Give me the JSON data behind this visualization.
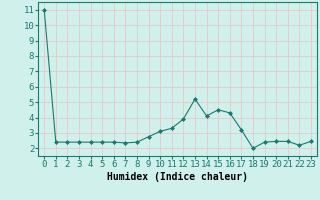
{
  "xlabel": "Humidex (Indice chaleur)",
  "ylabel": "",
  "x": [
    0,
    1,
    2,
    3,
    4,
    5,
    6,
    7,
    8,
    9,
    10,
    11,
    12,
    13,
    14,
    15,
    16,
    17,
    18,
    19,
    20,
    21,
    22,
    23
  ],
  "y": [
    11.0,
    2.4,
    2.4,
    2.4,
    2.4,
    2.4,
    2.4,
    2.35,
    2.4,
    2.75,
    3.1,
    3.3,
    3.9,
    5.2,
    4.1,
    4.5,
    4.3,
    3.2,
    2.0,
    2.4,
    2.45,
    2.45,
    2.2,
    2.45
  ],
  "line_color": "#1a7a6e",
  "marker": "D",
  "marker_size": 2,
  "bg_color": "#cff0eb",
  "grid_color": "#e8c8c8",
  "ylim": [
    1.5,
    11.5
  ],
  "xlim": [
    -0.5,
    23.5
  ],
  "yticks": [
    2,
    3,
    4,
    5,
    6,
    7,
    8,
    9,
    10,
    11
  ],
  "xtick_labels": [
    "0",
    "1",
    "2",
    "3",
    "4",
    "5",
    "6",
    "7",
    "8",
    "9",
    "10",
    "11",
    "12",
    "13",
    "14",
    "15",
    "16",
    "17",
    "18",
    "19",
    "20",
    "21",
    "22",
    "23"
  ],
  "xlabel_fontsize": 7,
  "tick_fontsize": 6.5
}
